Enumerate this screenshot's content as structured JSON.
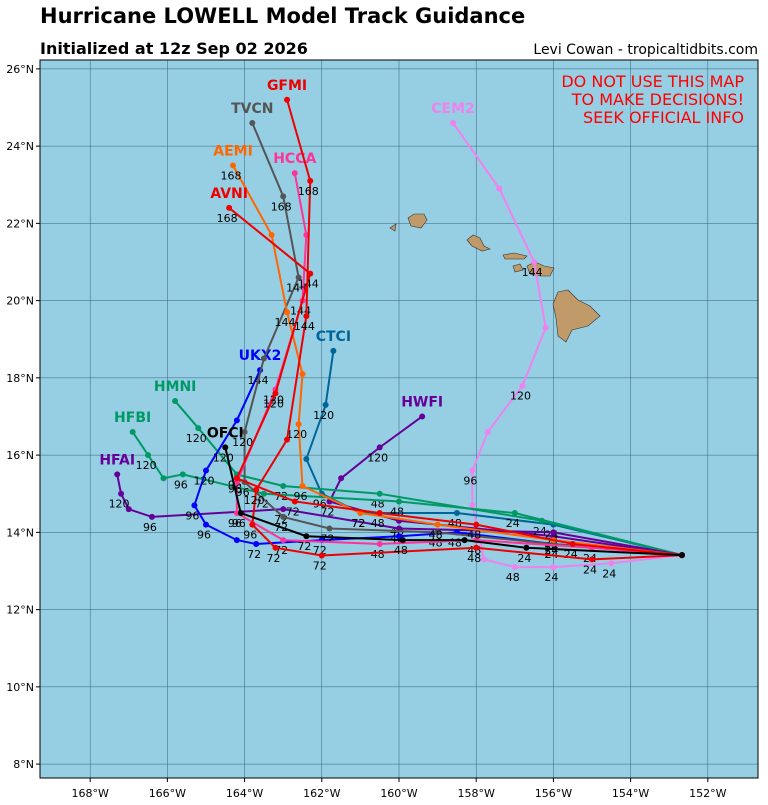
{
  "chart_data": {
    "type": "track",
    "title": "Hurricane LOWELL Model Track Guidance",
    "subtitle": "Initialized at 12z Sep 02 2026",
    "credit": "Levi Cowan - tropicaltidbits.com",
    "warning": [
      "DO NOT USE THIS MAP",
      "TO MAKE DECISIONS!",
      "SEEK OFFICIAL INFO"
    ],
    "warning_color": "#ff0000",
    "xlim": [
      -169.3,
      -150.7
    ],
    "ylim": [
      7.64,
      26.23
    ],
    "xticks": [
      {
        "value": -168,
        "label": "168°W"
      },
      {
        "value": -166,
        "label": "166°W"
      },
      {
        "value": -164,
        "label": "164°W"
      },
      {
        "value": -162,
        "label": "162°W"
      },
      {
        "value": -160,
        "label": "160°W"
      },
      {
        "value": -158,
        "label": "158°W"
      },
      {
        "value": -156,
        "label": "156°W"
      },
      {
        "value": -154,
        "label": "154°W"
      },
      {
        "value": -152,
        "label": "152°W"
      }
    ],
    "yticks": [
      {
        "value": 8,
        "label": "8°N"
      },
      {
        "value": 10,
        "label": "10°N"
      },
      {
        "value": 12,
        "label": "12°N"
      },
      {
        "value": 14,
        "label": "14°N"
      },
      {
        "value": 16,
        "label": "16°N"
      },
      {
        "value": 18,
        "label": "18°N"
      },
      {
        "value": 20,
        "label": "20°N"
      },
      {
        "value": 22,
        "label": "22°N"
      },
      {
        "value": 24,
        "label": "24°N"
      },
      {
        "value": 26,
        "label": "26°N"
      }
    ],
    "grid": true,
    "series": [
      {
        "name": "CEM2",
        "color": "#ee82ee",
        "x": [
          -152.67,
          -154.5,
          -156.0,
          -157.0,
          -157.8,
          -158.1,
          -158.1,
          -157.7,
          -156.8,
          -156.2,
          -156.5,
          -157.4,
          -158.6
        ],
        "y": [
          13.41,
          13.2,
          13.1,
          13.1,
          13.3,
          14.7,
          15.6,
          16.6,
          17.8,
          19.3,
          21.0,
          22.9,
          24.6
        ],
        "hours": [
          null,
          24,
          24,
          48,
          null,
          null,
          96,
          null,
          120,
          null,
          144,
          null,
          null
        ]
      },
      {
        "name": "HWFI",
        "color": "#660099",
        "x": [
          -152.67,
          -156.0,
          -160.0,
          -161.8,
          -161.5,
          -160.5,
          -159.4
        ],
        "y": [
          13.41,
          13.9,
          14.3,
          14.8,
          15.4,
          16.2,
          17.0
        ],
        "hours": [
          null,
          24,
          48,
          72,
          null,
          120,
          null
        ]
      },
      {
        "name": "CTCI",
        "color": "#006699",
        "x": [
          -152.67,
          -156.0,
          -158.5,
          -161.0,
          -162.0,
          -162.4,
          -161.9,
          -161.7
        ],
        "y": [
          13.41,
          14.2,
          14.5,
          14.5,
          15.0,
          15.9,
          17.3,
          18.7
        ],
        "hours": [
          null,
          24,
          48,
          72,
          96,
          null,
          120,
          null
        ]
      },
      {
        "name": "HMNI",
        "color": "#009966",
        "x": [
          -152.67,
          -156.3,
          -160.5,
          -163.0,
          -164.2,
          -165.2,
          -165.8
        ],
        "y": [
          13.41,
          14.3,
          15.0,
          15.2,
          15.5,
          16.7,
          17.4
        ],
        "hours": [
          null,
          24,
          48,
          72,
          96,
          120,
          null
        ]
      },
      {
        "name": "HFBI",
        "color": "#009966",
        "x": [
          -152.67,
          -157.0,
          -160.0,
          -163.5,
          -165.6,
          -166.1,
          -166.5,
          -166.9
        ],
        "y": [
          13.41,
          14.5,
          14.8,
          15.0,
          15.5,
          15.4,
          16.0,
          16.6
        ],
        "hours": [
          null,
          24,
          48,
          72,
          96,
          null,
          120,
          null
        ]
      },
      {
        "name": "HFAI",
        "color": "#660099",
        "x": [
          -152.67,
          -156.0,
          -160.0,
          -163.0,
          -166.4,
          -167.0,
          -167.2,
          -167.3
        ],
        "y": [
          13.41,
          14.0,
          14.1,
          14.6,
          14.4,
          14.6,
          15.0,
          15.5
        ],
        "hours": [
          null,
          24,
          48,
          72,
          96,
          null,
          120,
          null
        ]
      },
      {
        "name": "UKX2",
        "color": "#0000ff",
        "x": [
          -152.67,
          -156.0,
          -158.5,
          -160.0,
          -162.0,
          -163.7,
          -164.2,
          -165.0,
          -165.3,
          -165.0,
          -164.2,
          -163.6
        ],
        "y": [
          13.41,
          13.7,
          14.0,
          13.9,
          13.8,
          13.7,
          13.8,
          14.2,
          14.7,
          15.6,
          16.9,
          18.2
        ],
        "hours": [
          null,
          24,
          48,
          null,
          72,
          72,
          null,
          96,
          96,
          120,
          null,
          144
        ]
      },
      {
        "name": "TVCN",
        "color": "#555555",
        "x": [
          -152.67,
          -156.0,
          -159.0,
          -161.8,
          -163.0,
          -164.0,
          -164.0,
          -163.5,
          -162.6,
          -163.0,
          -163.8
        ],
        "y": [
          13.41,
          13.7,
          14.0,
          14.1,
          14.4,
          15.3,
          16.6,
          18.5,
          20.6,
          22.7,
          24.6
        ],
        "hours": [
          null,
          24,
          48,
          72,
          72,
          96,
          120,
          null,
          144,
          168,
          null
        ]
      },
      {
        "name": "HCCA",
        "color": "#ff3399",
        "x": [
          -152.67,
          -155.0,
          -158.0,
          -160.5,
          -163.0,
          -164.2,
          -164.2,
          -163.2,
          -162.5,
          -162.4,
          -162.7
        ],
        "y": [
          13.41,
          13.6,
          13.8,
          13.7,
          13.8,
          14.5,
          15.3,
          17.7,
          20.0,
          21.7,
          23.3
        ],
        "hours": [
          null,
          24,
          48,
          48,
          72,
          96,
          null,
          120,
          144,
          null,
          null
        ]
      },
      {
        "name": "AEMI",
        "color": "#ff6600",
        "x": [
          -152.67,
          -156.0,
          -159.0,
          -161.0,
          -162.5,
          -162.6,
          -162.5,
          -162.9,
          -163.3,
          -164.3
        ],
        "y": [
          13.41,
          13.8,
          14.2,
          14.5,
          15.2,
          16.8,
          18.1,
          19.7,
          21.7,
          23.5
        ],
        "hours": [
          null,
          24,
          48,
          72,
          96,
          120,
          null,
          144,
          null,
          168
        ]
      },
      {
        "name": "AVNI",
        "color": "#ee0000",
        "x": [
          -152.67,
          -155.5,
          -158.0,
          -160.5,
          -162.7,
          -164.2,
          -163.2,
          -162.3,
          -164.4
        ],
        "y": [
          13.41,
          13.7,
          14.2,
          14.5,
          14.8,
          15.4,
          17.6,
          20.7,
          22.4
        ],
        "hours": [
          null,
          24,
          48,
          48,
          72,
          96,
          120,
          144,
          168
        ]
      },
      {
        "name": "GFMI",
        "color": "#ee0000",
        "x": [
          -152.67,
          -155.0,
          -158.0,
          -162.0,
          -163.2,
          -163.8,
          -163.7,
          -162.9,
          -162.4,
          -162.3,
          -162.9
        ],
        "y": [
          13.41,
          13.3,
          13.6,
          13.4,
          13.6,
          14.2,
          15.1,
          16.4,
          19.6,
          23.1,
          25.2
        ],
        "hours": [
          null,
          24,
          48,
          72,
          72,
          96,
          120,
          null,
          144,
          168,
          null
        ]
      },
      {
        "name": "OFCI",
        "color": "#000000",
        "x": [
          -152.67,
          -156.7,
          -158.3,
          -159.9,
          -162.4,
          -164.1,
          -164.5
        ],
        "y": [
          13.41,
          13.6,
          13.8,
          13.8,
          13.9,
          14.5,
          16.2
        ],
        "hours": [
          null,
          24,
          null,
          48,
          72,
          96,
          120
        ]
      }
    ]
  }
}
